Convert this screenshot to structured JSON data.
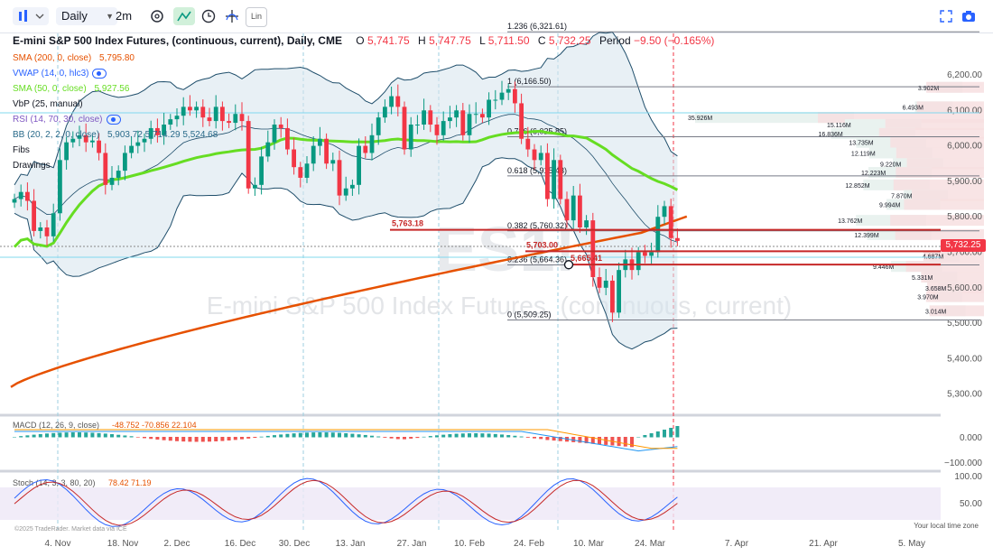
{
  "toolbar": {
    "interval": "Daily",
    "range": "2m",
    "lin_label": "Lin"
  },
  "header": {
    "title": "E-mini S&P 500 Index Futures, (continuous, current), Daily, CME",
    "open_label": "O",
    "open": "5,741.75",
    "high_label": "H",
    "high": "5,747.75",
    "low_label": "L",
    "low": "5,711.50",
    "close_label": "C",
    "close": "5,732.25",
    "period_label": "Period",
    "period_change": "−9.50 (−0.165%)"
  },
  "indicators": [
    {
      "label": "SMA (200, 0, close)",
      "value": "5,795.80",
      "color": "#e65100"
    },
    {
      "label": "VWAP (14, 0, hlc3)",
      "value": "",
      "color": "#2962ff"
    },
    {
      "label": "SMA (50, 0, close)",
      "value": "5,927.56",
      "color": "#66dd22"
    },
    {
      "label": "VbP (25, manual)",
      "value": "",
      "color": "#131722"
    },
    {
      "label": "RSI (14, 70, 30, close)",
      "value": "",
      "color": "#7e57c2"
    },
    {
      "label": "BB (20, 2, 2, 0, close)",
      "value": "5,903.72  5,714.29  5,524.68",
      "color": "#2a6b8a"
    },
    {
      "label": "Fibs",
      "value": "",
      "color": "#131722"
    },
    {
      "label": "Drawings",
      "value": "",
      "color": "#131722"
    }
  ],
  "watermark": "E-mini S&P 500 Index Futures, (continuous, current)",
  "watermark_symbol": "ES1!",
  "fib_levels": [
    {
      "label": "1.236 (6,321.61)",
      "price": 6321.61
    },
    {
      "label": "1 (6,166.50)",
      "price": 6166.5
    },
    {
      "label": "0.786 (6,025.85)",
      "price": 6025.85
    },
    {
      "label": "0.618 (5,915.43)",
      "price": 5915.43
    },
    {
      "label": "0.382 (5,760.32)",
      "price": 5760.32
    },
    {
      "label": "0.236 (5,664.36)",
      "price": 5664.36
    },
    {
      "label": "0 (5,509.25)",
      "price": 5509.25
    }
  ],
  "drawings": [
    {
      "label": "5,763.18",
      "price": 5763.18
    },
    {
      "label": "5,703.00",
      "price": 5703.0
    },
    {
      "label": "5,665.41",
      "price": 5665.41
    }
  ],
  "current_price": "5,732.25",
  "volume_profile": [
    {
      "label": "3.902M",
      "price": 6165
    },
    {
      "label": "6.493M",
      "price": 6110
    },
    {
      "label": "35.926M",
      "price": 6080
    },
    {
      "label": "15.116M",
      "price": 6060
    },
    {
      "label": "16.836M",
      "price": 6035
    },
    {
      "label": "13.735M",
      "price": 6010
    },
    {
      "label": "12.119M",
      "price": 5980
    },
    {
      "label": "9.220M",
      "price": 5950
    },
    {
      "label": "12.223M",
      "price": 5925
    },
    {
      "label": "12.852M",
      "price": 5890
    },
    {
      "label": "7.870M",
      "price": 5860
    },
    {
      "label": "9.994M",
      "price": 5835
    },
    {
      "label": "13.762M",
      "price": 5790
    },
    {
      "label": "12.399M",
      "price": 5750
    },
    {
      "label": "4.687M",
      "price": 5690
    },
    {
      "label": "9.446M",
      "price": 5660
    },
    {
      "label": "5.331M",
      "price": 5630
    },
    {
      "label": "3.658M",
      "price": 5600
    },
    {
      "label": "3.970M",
      "price": 5575
    },
    {
      "label": "3.014M",
      "price": 5535
    }
  ],
  "price_axis": [
    "6,200.00",
    "6,100.00",
    "6,000.00",
    "5,900.00",
    "5,800.00",
    "5,700.00",
    "5,600.00",
    "5,500.00",
    "5,400.00",
    "5,300.00"
  ],
  "time_axis": [
    "4. Nov",
    "18. Nov",
    "2. Dec",
    "16. Dec",
    "30. Dec",
    "13. Jan",
    "27. Jan",
    "10. Feb",
    "24. Feb",
    "10. Mar",
    "24. Mar",
    "7. Apr",
    "21. Apr",
    "5. May"
  ],
  "macd": {
    "label": "MACD (12, 26, 9, close)",
    "values": "-48.752  -70.856  22.104",
    "axis": [
      "0.000",
      "−100.000"
    ]
  },
  "stoch": {
    "label": "Stoch (14, 3, 3, 80, 20)",
    "values": "78.42  71.19",
    "axis": [
      "100.00",
      "50.00"
    ]
  },
  "copyright": "©2025 TradeRader. Market data via ICE",
  "timezone": "Your local time zone",
  "chart_data": {
    "type": "candlestick",
    "title": "E-mini S&P 500 Index Futures, (continuous, current), Daily, CME",
    "x": [
      "2024-10-28",
      "2024-10-29",
      "2024-10-30",
      "2024-10-31",
      "2024-11-01",
      "2024-11-04",
      "2024-11-05",
      "2024-11-06",
      "2024-11-07",
      "2024-11-08",
      "2024-11-11",
      "2024-11-12",
      "2024-11-13",
      "2024-11-14",
      "2024-11-15",
      "2024-11-18",
      "2024-11-19",
      "2024-11-20",
      "2024-11-21",
      "2024-11-22",
      "2024-11-25",
      "2024-11-26",
      "2024-11-27",
      "2024-11-29",
      "2024-12-02",
      "2024-12-03",
      "2024-12-04",
      "2024-12-05",
      "2024-12-06",
      "2024-12-09",
      "2024-12-10",
      "2024-12-11",
      "2024-12-12",
      "2024-12-13",
      "2024-12-16",
      "2024-12-17",
      "2024-12-18",
      "2024-12-19",
      "2024-12-20",
      "2024-12-23",
      "2024-12-24",
      "2024-12-26",
      "2024-12-27",
      "2024-12-30",
      "2024-12-31",
      "2025-01-02",
      "2025-01-03",
      "2025-01-06",
      "2025-01-07",
      "2025-01-08",
      "2025-01-10",
      "2025-01-13",
      "2025-01-14",
      "2025-01-15",
      "2025-01-16",
      "2025-01-17",
      "2025-01-21",
      "2025-01-22",
      "2025-01-23",
      "2025-01-24",
      "2025-01-27",
      "2025-01-28",
      "2025-01-29",
      "2025-01-30",
      "2025-01-31",
      "2025-02-03",
      "2025-02-04",
      "2025-02-05",
      "2025-02-06",
      "2025-02-07",
      "2025-02-10",
      "2025-02-11",
      "2025-02-12",
      "2025-02-13",
      "2025-02-14",
      "2025-02-18",
      "2025-02-19",
      "2025-02-20",
      "2025-02-21",
      "2025-02-24",
      "2025-02-25",
      "2025-02-26",
      "2025-02-27",
      "2025-02-28",
      "2025-03-03",
      "2025-03-04",
      "2025-03-05",
      "2025-03-06",
      "2025-03-07",
      "2025-03-10",
      "2025-03-11",
      "2025-03-12",
      "2025-03-13",
      "2025-03-14",
      "2025-03-17",
      "2025-03-18",
      "2025-03-19",
      "2025-03-20",
      "2025-03-21",
      "2025-03-24",
      "2025-03-25",
      "2025-03-26",
      "2025-03-27"
    ],
    "close": [
      5850,
      5870,
      5845,
      5760,
      5770,
      5745,
      5810,
      5960,
      6010,
      6020,
      6030,
      6010,
      6015,
      5980,
      5890,
      5910,
      5930,
      5980,
      6000,
      6010,
      6020,
      6050,
      6030,
      6060,
      6075,
      6085,
      6110,
      6100,
      6110,
      6080,
      6070,
      6110,
      6070,
      6065,
      6090,
      6070,
      5880,
      5890,
      5970,
      6010,
      6060,
      6050,
      5990,
      5940,
      5910,
      5950,
      6000,
      6020,
      5950,
      5960,
      5860,
      5880,
      5890,
      6000,
      5980,
      6030,
      6080,
      6110,
      6140,
      6110,
      5990,
      6060,
      6060,
      6100,
      6060,
      6030,
      6070,
      6080,
      6100,
      6030,
      6090,
      6090,
      6080,
      6130,
      6130,
      6150,
      6160,
      6120,
      6020,
      5990,
      5960,
      5980,
      5850,
      5960,
      5850,
      5790,
      5860,
      5770,
      5790,
      5630,
      5600,
      5620,
      5530,
      5650,
      5680,
      5650,
      5700,
      5690,
      5700,
      5800,
      5830,
      5740,
      5732
    ],
    "ylabel": "",
    "ylim": [
      5250,
      6340
    ],
    "series": [
      {
        "name": "SMA (200, 0, close)",
        "values_start": 5320,
        "values_end": 5795.8
      },
      {
        "name": "SMA (50, 0, close)",
        "values_end": 5927.56
      },
      {
        "name": "BB (20, 2, 2, 0, close)",
        "upper": 5903.72,
        "middle": 5714.29,
        "lower": 5524.68
      }
    ]
  }
}
